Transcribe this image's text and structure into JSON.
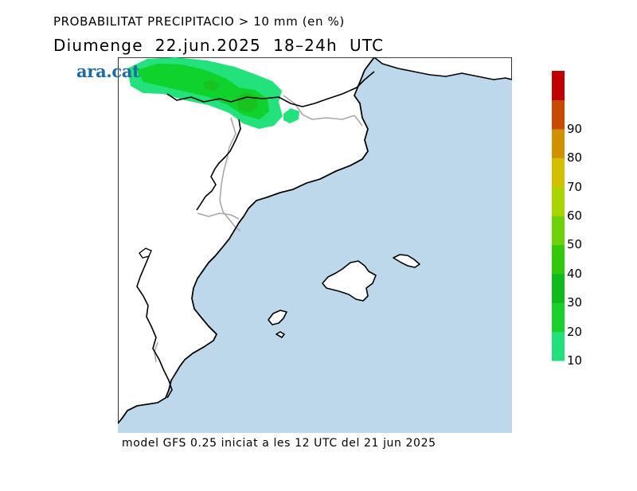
{
  "title": {
    "line1": "PROBABILITAT PRECIPITACIO > 10 mm (en %)",
    "line2": "Diumenge  22.jun.2025  18–24h  UTC"
  },
  "brand": "ara.cat",
  "footer": "model GFS 0.25 iniciat a les 12 UTC del 21 jun 2025",
  "colors": {
    "sea": "#bcd8ea",
    "land": "#ffffff",
    "coast": "#000000",
    "borders": "#aaaaaa",
    "precip_10": "#23e27c",
    "precip_20": "#0fd22c",
    "precip_30": "#19c21e"
  },
  "legend": {
    "labels": [
      "10",
      "20",
      "30",
      "40",
      "50",
      "60",
      "70",
      "80",
      "90"
    ],
    "bins": [
      {
        "color": "#22e07b"
      },
      {
        "color": "#1ad02c"
      },
      {
        "color": "#0fbc1c"
      },
      {
        "color": "#32c80c"
      },
      {
        "color": "#6ed20a"
      },
      {
        "color": "#a8d400"
      },
      {
        "color": "#d2c000"
      },
      {
        "color": "#d09000"
      },
      {
        "color": "#c84a00"
      },
      {
        "color": "#c00000"
      }
    ]
  }
}
